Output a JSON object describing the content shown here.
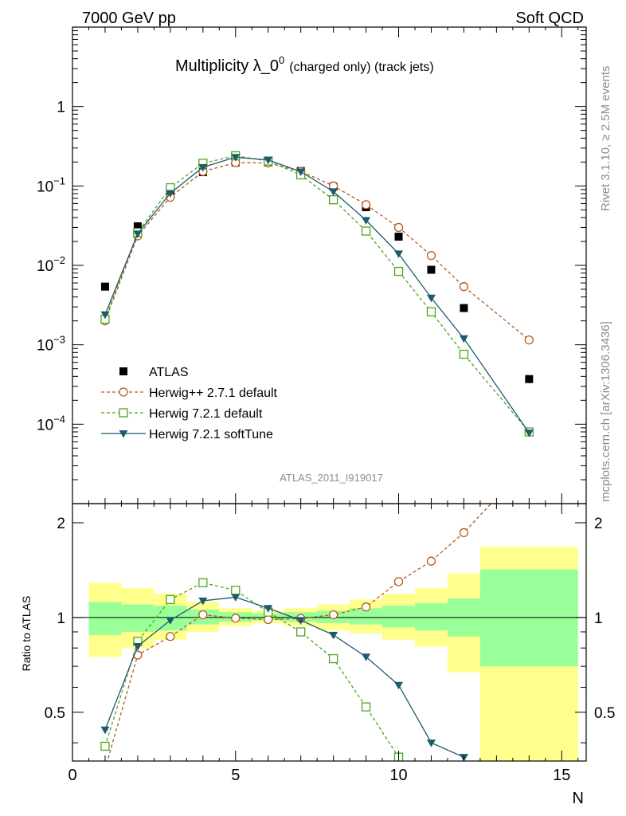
{
  "header": {
    "left": "7000 GeV pp",
    "right": "Soft QCD"
  },
  "title": "Multiplicity λ_0",
  "title_sup": "0",
  "title_suffix": "(charged only) (track jets)",
  "side_label_top": "Rivet 3.1.10, ≥ 2.5M events",
  "side_label_bottom": "mcplots.cern.ch [arXiv:1306.3436]",
  "analysis_id": "ATLAS_2011_I919017",
  "chart_data": [
    {
      "type": "line",
      "panel": "main",
      "yscale": "log",
      "xlim": [
        0,
        15.75
      ],
      "ylim": [
        1e-05,
        10
      ],
      "ytick_labels": [
        "10^{-4}",
        "10^{-3}",
        "10^{-2}",
        "10^{-1}",
        "1"
      ],
      "xtick_labels": [
        "0",
        "5",
        "10",
        "15"
      ],
      "series": [
        {
          "name": "ATLAS",
          "style": "data",
          "color": "#000000",
          "x": [
            1,
            2,
            3,
            4,
            5,
            6,
            7,
            8,
            9,
            10,
            11,
            12,
            14
          ],
          "y": [
            0.0054,
            0.031,
            0.083,
            0.149,
            0.197,
            0.198,
            0.154,
            0.098,
            0.054,
            0.023,
            0.0088,
            0.0029,
            0.00037
          ]
        },
        {
          "name": "Herwig++ 2.7.1 default",
          "style": "circle-dashed",
          "color": "#b35a1f",
          "x": [
            1,
            2,
            3,
            4,
            5,
            6,
            7,
            8,
            9,
            10,
            11,
            12,
            14
          ],
          "y": [
            0.002,
            0.0235,
            0.072,
            0.152,
            0.196,
            0.195,
            0.153,
            0.1,
            0.058,
            0.03,
            0.0133,
            0.0054,
            0.00115
          ]
        },
        {
          "name": "Herwig 7.2.1 default",
          "style": "square-dashed",
          "color": "#4da51c",
          "x": [
            1,
            2,
            3,
            4,
            5,
            6,
            7,
            8,
            9,
            10,
            11,
            12,
            14
          ],
          "y": [
            0.0021,
            0.026,
            0.095,
            0.193,
            0.24,
            0.206,
            0.138,
            0.067,
            0.027,
            0.0084,
            0.0026,
            0.00076,
            8e-05
          ]
        },
        {
          "name": "Herwig 7.2.1 softTune",
          "style": "triangle-solid",
          "color": "#1c5a6e",
          "x": [
            1,
            2,
            3,
            4,
            5,
            6,
            7,
            8,
            9,
            10,
            11,
            12,
            14
          ],
          "y": [
            0.0024,
            0.025,
            0.081,
            0.172,
            0.23,
            0.212,
            0.151,
            0.085,
            0.037,
            0.014,
            0.0039,
            0.0012,
            7.8e-05
          ]
        }
      ]
    },
    {
      "type": "line",
      "panel": "ratio",
      "ylabel": "Ratio to ATLAS",
      "xlabel": "N",
      "xlim": [
        0,
        15.75
      ],
      "ylim": [
        0.35,
        2.3
      ],
      "xtick_labels": [
        "0",
        "5",
        "10",
        "15"
      ],
      "ytick_labels": [
        "0.5",
        "1",
        "2"
      ],
      "reference_line": 1,
      "bands": {
        "bin_edges": [
          0.5,
          1.5,
          2.5,
          3.5,
          4.5,
          5.5,
          6.5,
          7.5,
          8.5,
          9.5,
          10.5,
          11.5,
          12.5,
          15.5
        ],
        "inner_lo": [
          0.88,
          0.9,
          0.91,
          0.95,
          0.97,
          0.98,
          0.97,
          0.96,
          0.95,
          0.93,
          0.91,
          0.87,
          0.7
        ],
        "inner_hi": [
          1.12,
          1.1,
          1.09,
          1.06,
          1.04,
          1.03,
          1.04,
          1.05,
          1.07,
          1.09,
          1.11,
          1.15,
          1.42
        ],
        "outer_lo": [
          0.75,
          0.8,
          0.85,
          0.9,
          0.94,
          0.96,
          0.94,
          0.91,
          0.89,
          0.85,
          0.81,
          0.67,
          0.25
        ],
        "outer_hi": [
          1.29,
          1.24,
          1.19,
          1.12,
          1.07,
          1.05,
          1.07,
          1.1,
          1.14,
          1.19,
          1.24,
          1.38,
          1.68
        ]
      },
      "series": [
        {
          "name": "Herwig++ 2.7.1 default",
          "style": "circle-dashed",
          "color": "#b35a1f",
          "x": [
            1,
            2,
            3,
            4,
            5,
            6,
            7,
            8,
            9,
            10,
            11,
            12,
            14
          ],
          "y": [
            0.33,
            0.76,
            0.87,
            1.02,
            0.995,
            0.985,
            0.993,
            1.02,
            1.08,
            1.3,
            1.51,
            1.86,
            3.1
          ]
        },
        {
          "name": "Herwig 7.2.1 default",
          "style": "square-dashed",
          "color": "#4da51c",
          "x": [
            1,
            2,
            3,
            4,
            5,
            6,
            7,
            8,
            9,
            10,
            11,
            12
          ],
          "y": [
            0.39,
            0.84,
            1.14,
            1.29,
            1.22,
            1.04,
            0.9,
            0.74,
            0.52,
            0.36,
            0.29,
            0.26
          ]
        },
        {
          "name": "Herwig 7.2.1 softTune",
          "style": "triangle-solid",
          "color": "#1c5a6e",
          "x": [
            1,
            2,
            3,
            4,
            5,
            6,
            7,
            8,
            9,
            10,
            11,
            12
          ],
          "y": [
            0.44,
            0.81,
            0.98,
            1.13,
            1.16,
            1.07,
            0.98,
            0.88,
            0.75,
            0.61,
            0.4,
            0.36
          ]
        }
      ]
    }
  ]
}
